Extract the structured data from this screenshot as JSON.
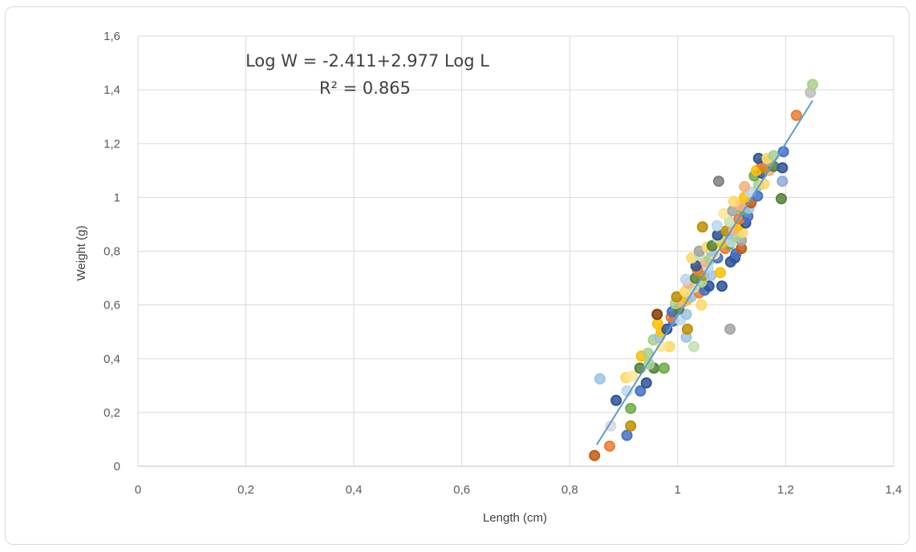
{
  "chart_data": {
    "type": "scatter",
    "title": "",
    "xlabel": "Length (cm)",
    "ylabel": "Weight (g)",
    "xlim": [
      0,
      1.4
    ],
    "ylim": [
      0,
      1.6
    ],
    "x_ticks": [
      "0",
      "0,2",
      "0,4",
      "0,6",
      "0,8",
      "1",
      "1,2",
      "1,4"
    ],
    "y_ticks": [
      "0",
      "0,2",
      "0,4",
      "0,6",
      "0,8",
      "1",
      "1,2",
      "1,4",
      "1,6"
    ],
    "grid": true,
    "legend": "none",
    "annotation": {
      "equation": "Log W = -2.411+2.977 Log L",
      "r_squared": "R² = 0.865"
    },
    "trendline": {
      "color": "#5b9bd5",
      "x": [
        0.85,
        1.25
      ],
      "y": [
        0.08,
        1.36
      ]
    },
    "points": [
      {
        "x": 0.846,
        "y": 0.04,
        "c": "#c55a11"
      },
      {
        "x": 0.874,
        "y": 0.075,
        "c": "#ed7d31"
      },
      {
        "x": 0.876,
        "y": 0.15,
        "c": "#d9d9d9"
      },
      {
        "x": 0.906,
        "y": 0.115,
        "c": "#4472c4"
      },
      {
        "x": 0.913,
        "y": 0.15,
        "c": "#bf9000"
      },
      {
        "x": 0.913,
        "y": 0.215,
        "c": "#70ad47"
      },
      {
        "x": 0.886,
        "y": 0.245,
        "c": "#2f5597"
      },
      {
        "x": 0.906,
        "y": 0.28,
        "c": "#bdd7ee"
      },
      {
        "x": 0.931,
        "y": 0.28,
        "c": "#4472c4"
      },
      {
        "x": 0.942,
        "y": 0.31,
        "c": "#2f5597"
      },
      {
        "x": 0.856,
        "y": 0.325,
        "c": "#9dc3e6"
      },
      {
        "x": 0.904,
        "y": 0.33,
        "c": "#ffd966"
      },
      {
        "x": 0.916,
        "y": 0.335,
        "c": "#ffe699"
      },
      {
        "x": 0.93,
        "y": 0.365,
        "c": "#548235"
      },
      {
        "x": 0.956,
        "y": 0.365,
        "c": "#548235"
      },
      {
        "x": 0.975,
        "y": 0.365,
        "c": "#70ad47"
      },
      {
        "x": 0.947,
        "y": 0.38,
        "c": "#a9d18e"
      },
      {
        "x": 0.933,
        "y": 0.41,
        "c": "#ffc000"
      },
      {
        "x": 0.945,
        "y": 0.42,
        "c": "#a9d18e"
      },
      {
        "x": 0.985,
        "y": 0.445,
        "c": "#ffd966"
      },
      {
        "x": 0.97,
        "y": 0.445,
        "c": "#ffe699"
      },
      {
        "x": 1.03,
        "y": 0.445,
        "c": "#c5e0b4"
      },
      {
        "x": 0.955,
        "y": 0.47,
        "c": "#a9d18e"
      },
      {
        "x": 0.966,
        "y": 0.48,
        "c": "#9dc3e6"
      },
      {
        "x": 1.016,
        "y": 0.48,
        "c": "#9dc3e6"
      },
      {
        "x": 0.97,
        "y": 0.5,
        "c": "#ffc000"
      },
      {
        "x": 0.98,
        "y": 0.51,
        "c": "#2f5597"
      },
      {
        "x": 1.018,
        "y": 0.51,
        "c": "#bf9000"
      },
      {
        "x": 1.097,
        "y": 0.51,
        "c": "#a5a5a5"
      },
      {
        "x": 0.963,
        "y": 0.53,
        "c": "#ffc000"
      },
      {
        "x": 0.992,
        "y": 0.54,
        "c": "#4472c4"
      },
      {
        "x": 1.005,
        "y": 0.545,
        "c": "#bdd7ee"
      },
      {
        "x": 0.988,
        "y": 0.555,
        "c": "#ed7d31"
      },
      {
        "x": 0.962,
        "y": 0.565,
        "c": "#843c0c"
      },
      {
        "x": 1.016,
        "y": 0.565,
        "c": "#9dc3e6"
      },
      {
        "x": 0.99,
        "y": 0.575,
        "c": "#4472c4"
      },
      {
        "x": 1.002,
        "y": 0.585,
        "c": "#548235"
      },
      {
        "x": 0.996,
        "y": 0.605,
        "c": "#a9d18e"
      },
      {
        "x": 1.044,
        "y": 0.6,
        "c": "#ffd966"
      },
      {
        "x": 1.01,
        "y": 0.61,
        "c": "#f4b183"
      },
      {
        "x": 1.018,
        "y": 0.62,
        "c": "#ffc000"
      },
      {
        "x": 0.998,
        "y": 0.63,
        "c": "#bf9000"
      },
      {
        "x": 1.025,
        "y": 0.63,
        "c": "#9dc3e6"
      },
      {
        "x": 1.04,
        "y": 0.645,
        "c": "#ed7d31"
      },
      {
        "x": 1.014,
        "y": 0.65,
        "c": "#ffd966"
      },
      {
        "x": 1.05,
        "y": 0.655,
        "c": "#4472c4"
      },
      {
        "x": 1.03,
        "y": 0.665,
        "c": "#c5e0b4"
      },
      {
        "x": 1.058,
        "y": 0.67,
        "c": "#2f5597"
      },
      {
        "x": 1.082,
        "y": 0.67,
        "c": "#2f5597"
      },
      {
        "x": 1.02,
        "y": 0.68,
        "c": "#f4b183"
      },
      {
        "x": 1.044,
        "y": 0.685,
        "c": "#a9d18e"
      },
      {
        "x": 1.015,
        "y": 0.695,
        "c": "#bdd7ee"
      },
      {
        "x": 1.033,
        "y": 0.7,
        "c": "#548235"
      },
      {
        "x": 1.048,
        "y": 0.71,
        "c": "#bf9000"
      },
      {
        "x": 1.062,
        "y": 0.71,
        "c": "#9dc3e6"
      },
      {
        "x": 1.079,
        "y": 0.72,
        "c": "#ffc000"
      },
      {
        "x": 1.037,
        "y": 0.73,
        "c": "#ed7d31"
      },
      {
        "x": 1.034,
        "y": 0.745,
        "c": "#2f5597"
      },
      {
        "x": 1.056,
        "y": 0.74,
        "c": "#bdd7ee"
      },
      {
        "x": 1.052,
        "y": 0.76,
        "c": "#f4b183"
      },
      {
        "x": 1.098,
        "y": 0.76,
        "c": "#2f5597"
      },
      {
        "x": 1.026,
        "y": 0.775,
        "c": "#ffd966"
      },
      {
        "x": 1.06,
        "y": 0.77,
        "c": "#a9d18e"
      },
      {
        "x": 1.074,
        "y": 0.775,
        "c": "#4472c4"
      },
      {
        "x": 1.106,
        "y": 0.775,
        "c": "#2f5597"
      },
      {
        "x": 1.04,
        "y": 0.785,
        "c": "#c5e0b4"
      },
      {
        "x": 1.068,
        "y": 0.79,
        "c": "#ffe699"
      },
      {
        "x": 1.108,
        "y": 0.79,
        "c": "#4472c4"
      },
      {
        "x": 1.04,
        "y": 0.8,
        "c": "#a5a5a5"
      },
      {
        "x": 1.062,
        "y": 0.8,
        "c": "#9dc3e6"
      },
      {
        "x": 1.088,
        "y": 0.81,
        "c": "#ed7d31"
      },
      {
        "x": 1.118,
        "y": 0.81,
        "c": "#c55a11"
      },
      {
        "x": 1.055,
        "y": 0.815,
        "c": "#ffd966"
      },
      {
        "x": 1.064,
        "y": 0.82,
        "c": "#548235"
      },
      {
        "x": 1.096,
        "y": 0.825,
        "c": "#70ad47"
      },
      {
        "x": 1.082,
        "y": 0.83,
        "c": "#ffc000"
      },
      {
        "x": 1.1,
        "y": 0.835,
        "c": "#bdd7ee"
      },
      {
        "x": 1.118,
        "y": 0.84,
        "c": "#a5a5a5"
      },
      {
        "x": 1.074,
        "y": 0.85,
        "c": "#c5e0b4"
      },
      {
        "x": 1.074,
        "y": 0.86,
        "c": "#2f5597"
      },
      {
        "x": 1.108,
        "y": 0.855,
        "c": "#a9d18e"
      },
      {
        "x": 1.094,
        "y": 0.865,
        "c": "#9dc3e6"
      },
      {
        "x": 1.12,
        "y": 0.87,
        "c": "#ffd966"
      },
      {
        "x": 1.09,
        "y": 0.875,
        "c": "#bf9000"
      },
      {
        "x": 1.104,
        "y": 0.88,
        "c": "#f4b183"
      },
      {
        "x": 1.046,
        "y": 0.89,
        "c": "#bf9000"
      },
      {
        "x": 1.073,
        "y": 0.895,
        "c": "#bdd7ee"
      },
      {
        "x": 1.112,
        "y": 0.895,
        "c": "#ffc000"
      },
      {
        "x": 1.126,
        "y": 0.905,
        "c": "#2f5597"
      },
      {
        "x": 1.096,
        "y": 0.91,
        "c": "#c5e0b4"
      },
      {
        "x": 1.114,
        "y": 0.92,
        "c": "#ed7d31"
      },
      {
        "x": 1.13,
        "y": 0.93,
        "c": "#4472c4"
      },
      {
        "x": 1.086,
        "y": 0.94,
        "c": "#ffe699"
      },
      {
        "x": 1.102,
        "y": 0.95,
        "c": "#a5a5a5"
      },
      {
        "x": 1.122,
        "y": 0.955,
        "c": "#70ad47"
      },
      {
        "x": 1.132,
        "y": 0.96,
        "c": "#9dc3e6"
      },
      {
        "x": 1.116,
        "y": 0.97,
        "c": "#f4b183"
      },
      {
        "x": 1.136,
        "y": 0.98,
        "c": "#c55a11"
      },
      {
        "x": 1.104,
        "y": 0.985,
        "c": "#ffd966"
      },
      {
        "x": 1.124,
        "y": 1.0,
        "c": "#ffc000"
      },
      {
        "x": 1.192,
        "y": 0.995,
        "c": "#548235"
      },
      {
        "x": 1.148,
        "y": 1.005,
        "c": "#4472c4"
      },
      {
        "x": 1.134,
        "y": 1.02,
        "c": "#bdd7ee"
      },
      {
        "x": 1.124,
        "y": 1.04,
        "c": "#f4b183"
      },
      {
        "x": 1.15,
        "y": 1.045,
        "c": "#a9d18e"
      },
      {
        "x": 1.16,
        "y": 1.05,
        "c": "#ffd966"
      },
      {
        "x": 1.076,
        "y": 1.06,
        "c": "#7f7f7f"
      },
      {
        "x": 1.194,
        "y": 1.06,
        "c": "#8faadc"
      },
      {
        "x": 1.142,
        "y": 1.08,
        "c": "#70ad47"
      },
      {
        "x": 1.156,
        "y": 1.09,
        "c": "#2f5597"
      },
      {
        "x": 1.146,
        "y": 1.1,
        "c": "#ffc000"
      },
      {
        "x": 1.17,
        "y": 1.1,
        "c": "#f4b183"
      },
      {
        "x": 1.162,
        "y": 1.11,
        "c": "#bf9000"
      },
      {
        "x": 1.178,
        "y": 1.115,
        "c": "#548235"
      },
      {
        "x": 1.194,
        "y": 1.11,
        "c": "#2f5597"
      },
      {
        "x": 1.156,
        "y": 1.125,
        "c": "#ed7d31"
      },
      {
        "x": 1.168,
        "y": 1.135,
        "c": "#a5a5a5"
      },
      {
        "x": 1.15,
        "y": 1.145,
        "c": "#2f5597"
      },
      {
        "x": 1.166,
        "y": 1.145,
        "c": "#ffd966"
      },
      {
        "x": 1.178,
        "y": 1.155,
        "c": "#a9d18e"
      },
      {
        "x": 1.196,
        "y": 1.17,
        "c": "#4472c4"
      },
      {
        "x": 1.22,
        "y": 1.305,
        "c": "#ed7d31"
      },
      {
        "x": 1.246,
        "y": 1.39,
        "c": "#bfbfbf"
      },
      {
        "x": 1.25,
        "y": 1.42,
        "c": "#a9d18e"
      }
    ]
  }
}
